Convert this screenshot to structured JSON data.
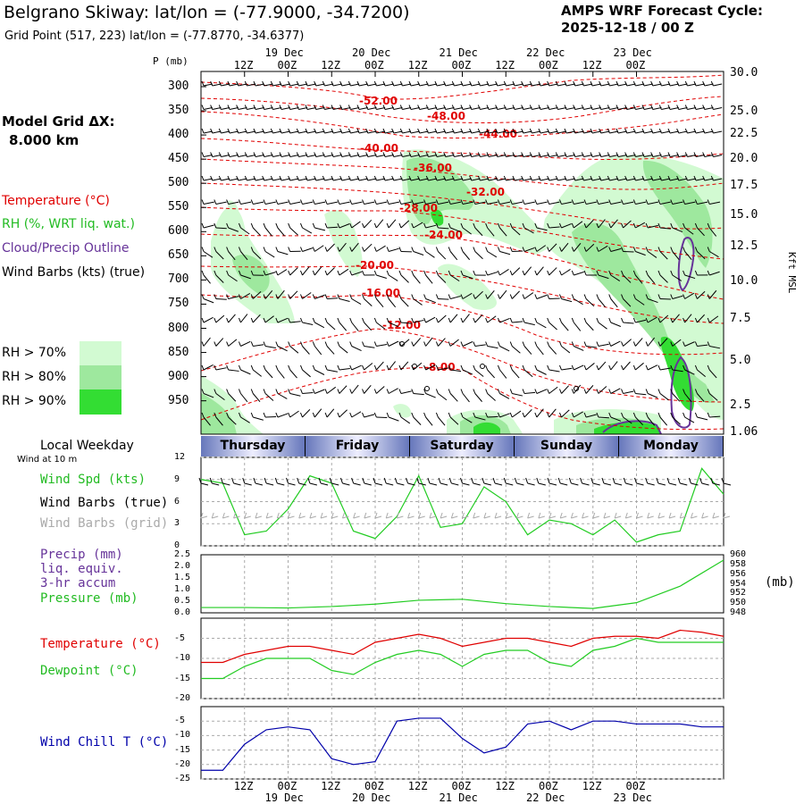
{
  "header": {
    "station_title": "Belgrano Skiway:  lat/lon = (-77.9000, -34.7200)",
    "grid_point": "Grid Point (517, 223) lat/lon = (-77.8770, -34.6377)",
    "forecast_cycle_label": "AMPS WRF Forecast Cycle:",
    "forecast_cycle_value": "2025-12-18 / 00  Z"
  },
  "left_legend": {
    "model_grid_label": "Model Grid ΔX:",
    "model_grid_value": "8.000 km",
    "temperature": "Temperature (°C)",
    "rh": "RH (%, WRT liq. wat.)",
    "cloud": "Cloud/Precip Outline",
    "wind_barbs": "Wind Barbs (kts) (true)",
    "rh70": "RH > 70%",
    "rh80": "RH > 80%",
    "rh90": "RH > 90%",
    "local_weekday": "Local Weekday",
    "wind_at_10m": "Wind at 10 m"
  },
  "colors": {
    "temperature": "#e00000",
    "rh70": "#d2fad2",
    "rh80": "#9ee89e",
    "rh90": "#33dd33",
    "cloud": "#663399",
    "wind_speed": "#22cc22",
    "wind_barb_grid": "#aaaaaa",
    "wind_chill": "#0000aa",
    "weekday_bar": "#6677bb"
  },
  "time_axis": {
    "hour_labels": [
      "12Z",
      "00Z",
      "12Z",
      "00Z",
      "12Z",
      "00Z",
      "12Z",
      "00Z",
      "12Z",
      "00Z"
    ],
    "date_labels": [
      "19 Dec",
      "20 Dec",
      "21 Dec",
      "22 Dec",
      "23 Dec"
    ],
    "weekdays": [
      "Thursday",
      "Friday",
      "Saturday",
      "Sunday",
      "Monday"
    ]
  },
  "cross_section": {
    "p_axis_title": "P (mb)",
    "pressure_ticks": [
      "300",
      "350",
      "400",
      "450",
      "500",
      "550",
      "600",
      "650",
      "700",
      "750",
      "800",
      "850",
      "900",
      "950"
    ],
    "height_axis_title": "Kft MSL",
    "height_ticks": [
      "30.0",
      "25.0",
      "22.5",
      "20.0",
      "17.5",
      "15.0",
      "12.5",
      "10.0",
      "7.5",
      "5.0",
      "2.5",
      "1.06"
    ],
    "isotherm_labels": [
      "-52.00",
      "-48.00",
      "-44.00",
      "-40.00",
      "-36.00",
      "-32.00",
      "-28.00",
      "-24.00",
      "-20.00",
      "-16.00",
      "-12.00",
      "-8.00"
    ]
  },
  "meteogram": {
    "panel1": {
      "labels": [
        "Wind Spd (kts)",
        "Wind Barbs (true)",
        "Wind Barbs (grid)"
      ],
      "y_ticks": [
        "12",
        "9",
        "6",
        "3",
        "0"
      ]
    },
    "panel2": {
      "labels": [
        "Precip (mm)",
        "liq. equiv.",
        "3-hr accum",
        "Pressure (mb)"
      ],
      "y_ticks_left": [
        "2.5",
        "2.0",
        "1.5",
        "1.0",
        "0.5",
        "0.0"
      ],
      "y_ticks_right": [
        "960",
        "958",
        "956",
        "954",
        "952",
        "950",
        "948"
      ],
      "right_unit": "(mb)"
    },
    "panel3": {
      "labels": [
        "Temperature (°C)",
        "Dewpoint (°C)"
      ],
      "y_ticks": [
        "-5",
        "-10",
        "-15",
        "-20"
      ]
    },
    "panel4": {
      "labels": [
        "Wind Chill T (°C)"
      ],
      "y_ticks": [
        "-5",
        "-10",
        "-15",
        "-20",
        "-25"
      ]
    }
  },
  "chart_data": [
    {
      "type": "line",
      "title": "Wind Spd (kts)",
      "x_hours": [
        0,
        6,
        12,
        18,
        24,
        30,
        36,
        42,
        48,
        54,
        60,
        66,
        72,
        78,
        84,
        90,
        96,
        102,
        108,
        114,
        120,
        126,
        132,
        138,
        144
      ],
      "series": [
        {
          "name": "Wind Spd (kts)",
          "values": [
            9,
            8.5,
            1.5,
            2,
            5,
            9.5,
            8.5,
            2,
            1,
            4,
            9.5,
            2.5,
            3,
            8,
            6,
            1.5,
            3.5,
            3,
            1.5,
            3.5,
            0.5,
            1.5,
            2,
            10.5,
            7
          ]
        }
      ],
      "ylim": [
        0,
        12
      ]
    },
    {
      "type": "line",
      "title": "Pressure (mb)",
      "x_hours": [
        0,
        12,
        24,
        36,
        48,
        60,
        72,
        84,
        96,
        108,
        120,
        132,
        144
      ],
      "series": [
        {
          "name": "Pressure (mb)",
          "values": [
            949.1,
            949.1,
            949.0,
            949.3,
            949.8,
            950.6,
            950.8,
            949.9,
            949.3,
            948.9,
            950.1,
            953.5,
            958.9
          ]
        },
        {
          "name": "Precip (mm)",
          "values": [
            0,
            0,
            0,
            0,
            0,
            0,
            0,
            0,
            0,
            0,
            0,
            0,
            0
          ]
        }
      ],
      "ylim": [
        0,
        2.5
      ],
      "ylim_right": [
        948,
        960
      ]
    },
    {
      "type": "line",
      "title": "Temperature / Dewpoint (°C)",
      "x_hours": [
        0,
        6,
        12,
        18,
        24,
        30,
        36,
        42,
        48,
        54,
        60,
        66,
        72,
        78,
        84,
        90,
        96,
        102,
        108,
        114,
        120,
        126,
        132,
        138,
        144
      ],
      "series": [
        {
          "name": "Temperature",
          "values": [
            -11,
            -11,
            -9,
            -8,
            -7,
            -7,
            -8,
            -9,
            -6,
            -5,
            -4,
            -5,
            -7,
            -6,
            -5,
            -5,
            -6,
            -7,
            -5,
            -4.5,
            -4.5,
            -5,
            -3,
            -3.5,
            -4.5
          ]
        },
        {
          "name": "Dewpoint",
          "values": [
            -15,
            -15,
            -12,
            -10,
            -10,
            -10,
            -13,
            -14,
            -11,
            -9,
            -8,
            -9,
            -12,
            -9,
            -8,
            -8,
            -11,
            -12,
            -8,
            -7,
            -5,
            -6,
            -6,
            -6,
            -6
          ]
        }
      ],
      "ylim": [
        -20,
        0
      ]
    },
    {
      "type": "line",
      "title": "Wind Chill T (°C)",
      "x_hours": [
        0,
        6,
        12,
        18,
        24,
        30,
        36,
        42,
        48,
        54,
        60,
        66,
        72,
        78,
        84,
        90,
        96,
        102,
        108,
        114,
        120,
        126,
        132,
        138,
        144
      ],
      "series": [
        {
          "name": "Wind Chill T",
          "values": [
            -22,
            -22,
            -13,
            -8,
            -7,
            -8,
            -18,
            -20,
            -19,
            -5,
            -4,
            -4,
            -11,
            -16,
            -14,
            -6,
            -5,
            -8,
            -5,
            -5,
            -6,
            -6,
            -6,
            -7,
            -7
          ]
        }
      ],
      "ylim": [
        -25,
        0
      ]
    }
  ]
}
